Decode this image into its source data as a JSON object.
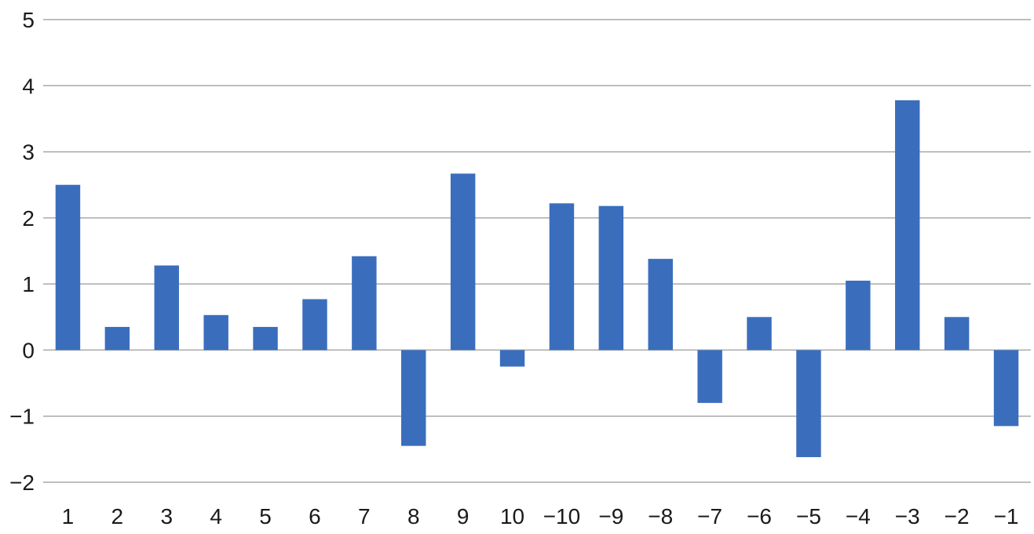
{
  "chart_data": {
    "type": "bar",
    "title": "",
    "xlabel": "",
    "ylabel": "",
    "categories": [
      "1",
      "2",
      "3",
      "4",
      "5",
      "6",
      "7",
      "8",
      "9",
      "10",
      "−10",
      "−9",
      "−8",
      "−7",
      "−6",
      "−5",
      "−4",
      "−3",
      "−2",
      "−1"
    ],
    "values": [
      2.5,
      0.35,
      1.28,
      0.53,
      0.35,
      0.77,
      1.42,
      -1.45,
      2.67,
      -0.25,
      2.22,
      2.18,
      1.38,
      -0.8,
      0.5,
      -1.62,
      1.05,
      3.78,
      0.5,
      -1.15
    ],
    "ylim": [
      -2,
      5
    ],
    "yticks": [
      5,
      4,
      3,
      2,
      1,
      0,
      -1,
      -2
    ],
    "ytick_labels": [
      "5",
      "4",
      "3",
      "2",
      "1",
      "0",
      "−1",
      "−2"
    ],
    "grid": true,
    "legend": "none",
    "bar_color": "#3a6ebd",
    "grid_color": "#a9a9a9"
  }
}
